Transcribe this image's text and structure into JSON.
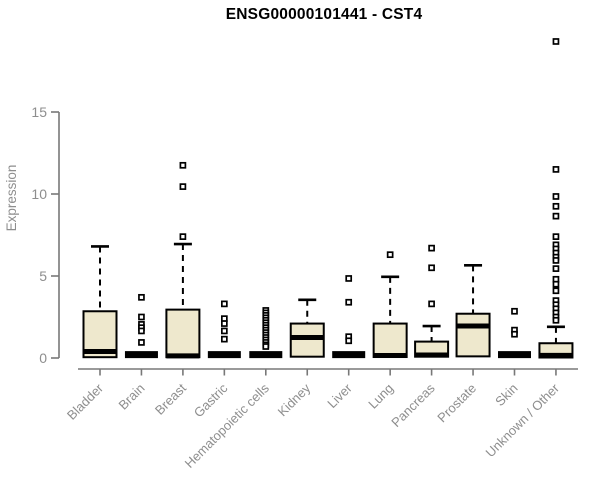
{
  "chart_data": {
    "type": "boxplot",
    "title": "ENSG00000101441 - CST4",
    "ylabel": "Expression",
    "xlabel": "",
    "yticks": [
      0,
      5,
      10,
      15
    ],
    "ylim": [
      0,
      19.5
    ],
    "grid": false,
    "legend": false,
    "categories": [
      "Bladder",
      "Brain",
      "Breast",
      "Gastric",
      "Hematopoietic cells",
      "Kidney",
      "Liver",
      "Lung",
      "Pancreas",
      "Prostate",
      "Skin",
      "Unknown / Other"
    ],
    "series": [
      {
        "category": "Bladder",
        "collapsed": false,
        "q1": 0.05,
        "median": 0.4,
        "q3": 2.85,
        "whisker_high": 6.8,
        "outliers": []
      },
      {
        "category": "Brain",
        "collapsed": true,
        "q1": 0,
        "median": 0.05,
        "q3": 0.3,
        "whisker_high": 0.3,
        "outliers": [
          3.7,
          2.5,
          2.05,
          1.85,
          1.65,
          0.95
        ]
      },
      {
        "category": "Breast",
        "collapsed": false,
        "q1": 0.05,
        "median": 0.13,
        "q3": 2.95,
        "whisker_high": 6.95,
        "outliers": [
          11.75,
          10.45,
          7.4
        ]
      },
      {
        "category": "Gastric",
        "collapsed": true,
        "q1": 0,
        "median": 0.05,
        "q3": 0.3,
        "whisker_high": 0.3,
        "outliers": [
          3.3,
          2.4,
          2.1,
          1.65,
          1.15
        ]
      },
      {
        "category": "Hematopoietic cells",
        "collapsed": true,
        "q1": 0,
        "median": 0.05,
        "q3": 0.3,
        "whisker_high": 0.3,
        "outliers": [
          2.9,
          2.75,
          2.6,
          2.45,
          2.3,
          2.15,
          2.0,
          1.85,
          1.7,
          1.55,
          1.4,
          1.25,
          1.1,
          0.95,
          0.8,
          0.7
        ]
      },
      {
        "category": "Kidney",
        "collapsed": false,
        "q1": 0.08,
        "median": 1.25,
        "q3": 2.1,
        "whisker_high": 3.55,
        "outliers": []
      },
      {
        "category": "Liver",
        "collapsed": true,
        "q1": 0,
        "median": 0.05,
        "q3": 0.3,
        "whisker_high": 0.3,
        "outliers": [
          4.85,
          3.4,
          1.3,
          1.05
        ]
      },
      {
        "category": "Lung",
        "collapsed": false,
        "q1": 0.06,
        "median": 0.15,
        "q3": 2.1,
        "whisker_high": 4.95,
        "outliers": [
          6.3
        ]
      },
      {
        "category": "Pancreas",
        "collapsed": false,
        "q1": 0.08,
        "median": 0.18,
        "q3": 1.0,
        "whisker_high": 1.95,
        "outliers": [
          6.7,
          5.5,
          3.3
        ]
      },
      {
        "category": "Prostate",
        "collapsed": false,
        "q1": 0.1,
        "median": 1.95,
        "q3": 2.7,
        "whisker_high": 5.65,
        "outliers": []
      },
      {
        "category": "Skin",
        "collapsed": true,
        "q1": 0,
        "median": 0.05,
        "q3": 0.3,
        "whisker_high": 0.3,
        "outliers": [
          2.85,
          1.7,
          1.45
        ]
      },
      {
        "category": "Unknown / Other",
        "collapsed": false,
        "q1": 0.03,
        "median": 0.16,
        "q3": 0.9,
        "whisker_high": 1.9,
        "outliers": [
          19.3,
          11.5,
          9.85,
          9.25,
          8.65,
          7.4,
          6.9,
          6.65,
          6.4,
          6.15,
          5.95,
          5.45,
          4.8,
          4.5,
          4.1,
          3.5,
          3.25,
          3.0,
          2.75,
          2.5,
          2.3
        ]
      }
    ],
    "colors": {
      "box_fill": "#EEE8CD",
      "box_stroke": "#000000",
      "median": "#000000",
      "whisker": "#000000",
      "outlier_stroke": "#000000",
      "outlier_fill": "#FFFFFF",
      "axis": "#787878",
      "tick_text": "#8E8E8E",
      "title": "#000000",
      "background": "#FFFFFF"
    }
  }
}
